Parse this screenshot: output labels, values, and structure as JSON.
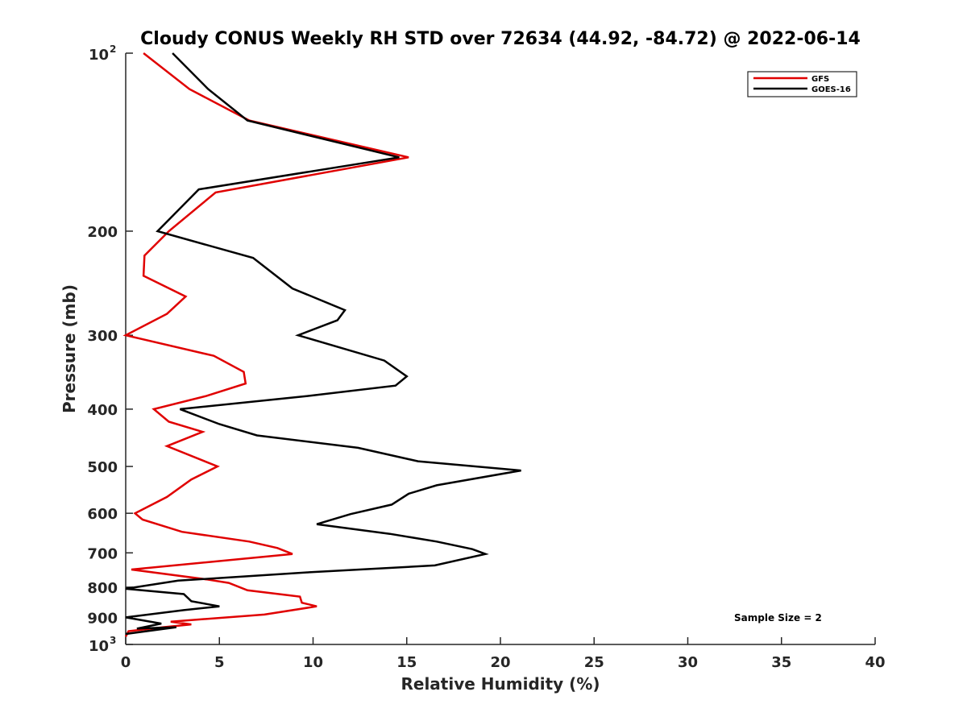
{
  "chart_data": {
    "type": "line",
    "title": "Cloudy CONUS Weekly RH STD over 72634 (44.92, -84.72) @ 2022-06-14",
    "xlabel": "Relative Humidity (%)",
    "ylabel": "Pressure (mb)",
    "xlim": [
      0,
      40
    ],
    "ylim": [
      100,
      1000
    ],
    "y_scale": "log",
    "y_reversed": true,
    "grid": false,
    "legend_position": "top-right",
    "x_ticks": [
      0,
      5,
      10,
      15,
      20,
      25,
      30,
      35,
      40
    ],
    "x_tick_labels": [
      "0",
      "5",
      "10",
      "15",
      "20",
      "25",
      "30",
      "35",
      "40"
    ],
    "y_ticks": [
      {
        "value": 100,
        "base": "10",
        "exp": "2"
      },
      {
        "value": 200,
        "label": "200"
      },
      {
        "value": 300,
        "label": "300"
      },
      {
        "value": 400,
        "label": "400"
      },
      {
        "value": 500,
        "label": "500"
      },
      {
        "value": 600,
        "label": "600"
      },
      {
        "value": 700,
        "label": "700"
      },
      {
        "value": 800,
        "label": "800"
      },
      {
        "value": 900,
        "label": "900"
      },
      {
        "value": 1000,
        "base": "10",
        "exp": "3"
      }
    ],
    "annotation": "Sample Size = 2",
    "series": [
      {
        "name": "GFS",
        "color": "#e00000",
        "points": [
          [
            0.95,
            100
          ],
          [
            3.4,
            115
          ],
          [
            6.6,
            130
          ],
          [
            15.1,
            150
          ],
          [
            4.8,
            172
          ],
          [
            2.3,
            200
          ],
          [
            1.0,
            220
          ],
          [
            0.95,
            238
          ],
          [
            3.2,
            258
          ],
          [
            2.2,
            276
          ],
          [
            0.0,
            300
          ],
          [
            4.7,
            325
          ],
          [
            6.3,
            346
          ],
          [
            6.4,
            362
          ],
          [
            4.3,
            380
          ],
          [
            1.5,
            400
          ],
          [
            2.3,
            420
          ],
          [
            4.1,
            437
          ],
          [
            2.2,
            462
          ],
          [
            4.9,
            500
          ],
          [
            3.5,
            526
          ],
          [
            2.2,
            563
          ],
          [
            0.5,
            600
          ],
          [
            0.9,
            615
          ],
          [
            3.0,
            645
          ],
          [
            6.6,
            670
          ],
          [
            8.1,
            687
          ],
          [
            8.9,
            703
          ],
          [
            0.3,
            747
          ],
          [
            4.3,
            776
          ],
          [
            5.5,
            787
          ],
          [
            6.5,
            810
          ],
          [
            9.3,
            830
          ],
          [
            9.4,
            850
          ],
          [
            10.2,
            862
          ],
          [
            7.4,
            890
          ],
          [
            2.4,
            915
          ],
          [
            3.5,
            925
          ],
          [
            2.0,
            935
          ],
          [
            0.15,
            950
          ],
          [
            0.0,
            970
          ]
        ]
      },
      {
        "name": "GOES-16",
        "color": "#000000",
        "points": [
          [
            2.5,
            100
          ],
          [
            4.4,
            115
          ],
          [
            6.5,
            130
          ],
          [
            14.6,
            150
          ],
          [
            3.9,
            170
          ],
          [
            1.7,
            200
          ],
          [
            6.8,
            222
          ],
          [
            8.9,
            250
          ],
          [
            11.7,
            272
          ],
          [
            11.3,
            283
          ],
          [
            9.2,
            300
          ],
          [
            13.8,
            331
          ],
          [
            15.0,
            352
          ],
          [
            14.4,
            365
          ],
          [
            9.7,
            380
          ],
          [
            2.9,
            400
          ],
          [
            5.0,
            424
          ],
          [
            7.0,
            443
          ],
          [
            12.4,
            465
          ],
          [
            15.6,
            490
          ],
          [
            21.1,
            508
          ],
          [
            16.6,
            538
          ],
          [
            15.1,
            556
          ],
          [
            14.2,
            580
          ],
          [
            12.0,
            602
          ],
          [
            10.2,
            626
          ],
          [
            14.1,
            650
          ],
          [
            16.6,
            670
          ],
          [
            18.5,
            690
          ],
          [
            19.2,
            703
          ],
          [
            16.5,
            735
          ],
          [
            9.8,
            755
          ],
          [
            2.8,
            780
          ],
          [
            0.0,
            805
          ],
          [
            3.1,
            822
          ],
          [
            3.5,
            845
          ],
          [
            5.0,
            862
          ],
          [
            3.1,
            875
          ],
          [
            0.0,
            900
          ],
          [
            1.9,
            922
          ],
          [
            0.6,
            940
          ],
          [
            2.7,
            935
          ],
          [
            0.0,
            960
          ]
        ]
      }
    ]
  }
}
